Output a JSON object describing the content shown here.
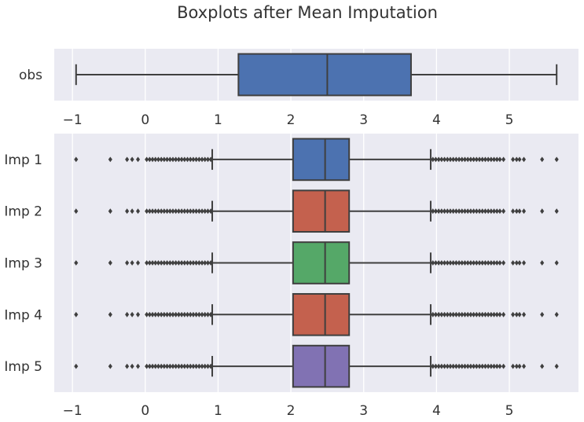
{
  "chart_data": {
    "type": "boxplot",
    "title": "Boxplots after Mean Imputation",
    "colors": {
      "background": "#eaeaf2",
      "grid": "#ffffff",
      "line": "#3f3f3f",
      "obs": "#4c72b0",
      "imp_1": "#4c72b0",
      "imp_2": "#c4614e",
      "imp_3": "#55a868",
      "imp_4": "#c4614e",
      "imp_5": "#8172b3"
    },
    "panels": [
      {
        "xlim": [
          -1.25,
          5.95
        ],
        "xticks": [
          -1,
          0,
          1,
          2,
          3,
          4,
          5
        ],
        "xtick_labels": [
          "−1",
          "0",
          "1",
          "2",
          "3",
          "4",
          "5"
        ],
        "boxes": [
          {
            "label": "obs",
            "color": "#4c72b0",
            "whisker_low": -0.95,
            "q1": 1.28,
            "median": 2.5,
            "q3": 3.65,
            "whisker_high": 5.65,
            "outliers": []
          }
        ]
      },
      {
        "xlim": [
          -1.25,
          5.95
        ],
        "xticks": [
          -1,
          0,
          1,
          2,
          3,
          4,
          5
        ],
        "xtick_labels": [
          "−1",
          "0",
          "1",
          "2",
          "3",
          "4",
          "5"
        ],
        "boxes": [
          {
            "label": "Imp 1",
            "color": "#4c72b0",
            "whisker_low": 0.92,
            "q1": 2.03,
            "median": 2.47,
            "q3": 2.8,
            "whisker_high": 3.92,
            "outliers": [
              -0.95,
              -0.48,
              -0.25,
              -0.18,
              -0.1,
              0.02,
              0.06,
              0.1,
              0.14,
              0.18,
              0.22,
              0.26,
              0.3,
              0.34,
              0.38,
              0.42,
              0.46,
              0.5,
              0.54,
              0.58,
              0.62,
              0.66,
              0.7,
              0.74,
              0.78,
              0.82,
              0.86,
              0.9,
              3.95,
              3.99,
              4.03,
              4.07,
              4.11,
              4.15,
              4.19,
              4.23,
              4.27,
              4.31,
              4.35,
              4.39,
              4.43,
              4.47,
              4.51,
              4.55,
              4.59,
              4.63,
              4.67,
              4.71,
              4.75,
              4.79,
              4.83,
              4.87,
              4.92,
              5.05,
              5.1,
              5.14,
              5.2,
              5.45,
              5.65
            ]
          },
          {
            "label": "Imp 2",
            "color": "#c4614e",
            "whisker_low": 0.92,
            "q1": 2.03,
            "median": 2.47,
            "q3": 2.8,
            "whisker_high": 3.92,
            "outliers": [
              -0.95,
              -0.48,
              -0.25,
              -0.18,
              -0.1,
              0.02,
              0.06,
              0.1,
              0.14,
              0.18,
              0.22,
              0.26,
              0.3,
              0.34,
              0.38,
              0.42,
              0.46,
              0.5,
              0.54,
              0.58,
              0.62,
              0.66,
              0.7,
              0.74,
              0.78,
              0.82,
              0.86,
              0.9,
              3.95,
              3.99,
              4.03,
              4.07,
              4.11,
              4.15,
              4.19,
              4.23,
              4.27,
              4.31,
              4.35,
              4.39,
              4.43,
              4.47,
              4.51,
              4.55,
              4.59,
              4.63,
              4.67,
              4.71,
              4.75,
              4.79,
              4.83,
              4.87,
              4.92,
              5.05,
              5.1,
              5.14,
              5.2,
              5.45,
              5.65
            ]
          },
          {
            "label": "Imp 3",
            "color": "#55a868",
            "whisker_low": 0.92,
            "q1": 2.03,
            "median": 2.47,
            "q3": 2.8,
            "whisker_high": 3.92,
            "outliers": [
              -0.95,
              -0.48,
              -0.25,
              -0.18,
              -0.1,
              0.02,
              0.06,
              0.1,
              0.14,
              0.18,
              0.22,
              0.26,
              0.3,
              0.34,
              0.38,
              0.42,
              0.46,
              0.5,
              0.54,
              0.58,
              0.62,
              0.66,
              0.7,
              0.74,
              0.78,
              0.82,
              0.86,
              0.9,
              3.95,
              3.99,
              4.03,
              4.07,
              4.11,
              4.15,
              4.19,
              4.23,
              4.27,
              4.31,
              4.35,
              4.39,
              4.43,
              4.47,
              4.51,
              4.55,
              4.59,
              4.63,
              4.67,
              4.71,
              4.75,
              4.79,
              4.83,
              4.87,
              4.92,
              5.05,
              5.1,
              5.14,
              5.2,
              5.45,
              5.65
            ]
          },
          {
            "label": "Imp 4",
            "color": "#c4614e",
            "whisker_low": 0.92,
            "q1": 2.03,
            "median": 2.47,
            "q3": 2.8,
            "whisker_high": 3.92,
            "outliers": [
              -0.95,
              -0.48,
              -0.25,
              -0.18,
              -0.1,
              0.02,
              0.06,
              0.1,
              0.14,
              0.18,
              0.22,
              0.26,
              0.3,
              0.34,
              0.38,
              0.42,
              0.46,
              0.5,
              0.54,
              0.58,
              0.62,
              0.66,
              0.7,
              0.74,
              0.78,
              0.82,
              0.86,
              0.9,
              3.95,
              3.99,
              4.03,
              4.07,
              4.11,
              4.15,
              4.19,
              4.23,
              4.27,
              4.31,
              4.35,
              4.39,
              4.43,
              4.47,
              4.51,
              4.55,
              4.59,
              4.63,
              4.67,
              4.71,
              4.75,
              4.79,
              4.83,
              4.87,
              4.92,
              5.05,
              5.1,
              5.14,
              5.2,
              5.45,
              5.65
            ]
          },
          {
            "label": "Imp 5",
            "color": "#8172b3",
            "whisker_low": 0.92,
            "q1": 2.03,
            "median": 2.47,
            "q3": 2.8,
            "whisker_high": 3.92,
            "outliers": [
              -0.95,
              -0.48,
              -0.25,
              -0.18,
              -0.1,
              0.02,
              0.06,
              0.1,
              0.14,
              0.18,
              0.22,
              0.26,
              0.3,
              0.34,
              0.38,
              0.42,
              0.46,
              0.5,
              0.54,
              0.58,
              0.62,
              0.66,
              0.7,
              0.74,
              0.78,
              0.82,
              0.86,
              0.9,
              3.95,
              3.99,
              4.03,
              4.07,
              4.11,
              4.15,
              4.19,
              4.23,
              4.27,
              4.31,
              4.35,
              4.39,
              4.43,
              4.47,
              4.51,
              4.55,
              4.59,
              4.63,
              4.67,
              4.71,
              4.75,
              4.79,
              4.83,
              4.87,
              4.92,
              5.05,
              5.1,
              5.14,
              5.2,
              5.45,
              5.65
            ]
          }
        ]
      }
    ],
    "grid": true,
    "legend": "none"
  }
}
